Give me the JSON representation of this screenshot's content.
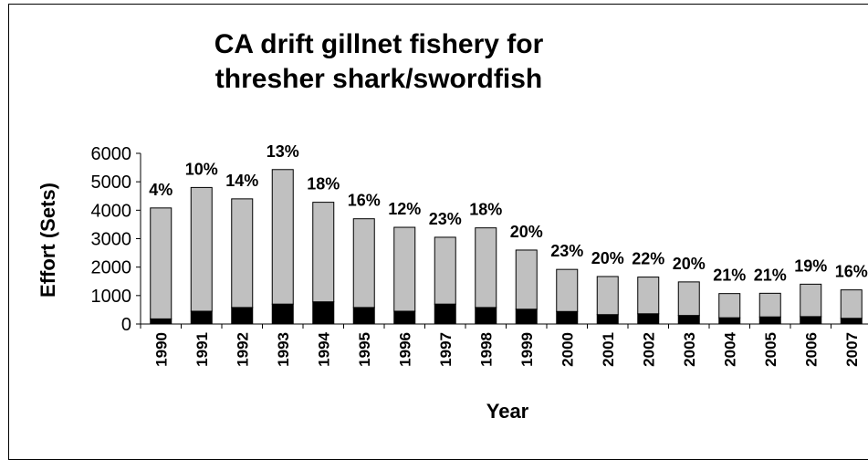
{
  "chart_data": {
    "type": "bar",
    "stacked": true,
    "title": "CA drift gillnet fishery for thresher shark/swordfish",
    "xlabel": "Year",
    "ylabel": "Effort (Sets)",
    "ylim": [
      0,
      6000
    ],
    "yticks": [
      "0",
      "1000",
      "2000",
      "3000",
      "4000",
      "5000",
      "6000"
    ],
    "grid": false,
    "categories": [
      "1990",
      "1991",
      "1992",
      "1993",
      "1994",
      "1995",
      "1996",
      "1997",
      "1998",
      "1999",
      "2000",
      "2001",
      "2002",
      "2003",
      "2004",
      "2005",
      "2006",
      "2007"
    ],
    "series": [
      {
        "color": "#000000",
        "values": [
          180,
          450,
          580,
          700,
          780,
          580,
          450,
          700,
          580,
          520,
          440,
          330,
          360,
          300,
          220,
          250,
          260,
          200
        ]
      },
      {
        "color": "#c0c0c0",
        "values": [
          3900,
          4350,
          3820,
          4730,
          3500,
          3120,
          2950,
          2350,
          2800,
          2080,
          1480,
          1340,
          1290,
          1180,
          850,
          830,
          1140,
          1000
        ]
      }
    ],
    "annotations": [
      "4%",
      "10%",
      "14%",
      "13%",
      "18%",
      "16%",
      "12%",
      "23%",
      "18%",
      "20%",
      "23%",
      "20%",
      "22%",
      "20%",
      "21%",
      "21%",
      "19%",
      "16%"
    ]
  }
}
